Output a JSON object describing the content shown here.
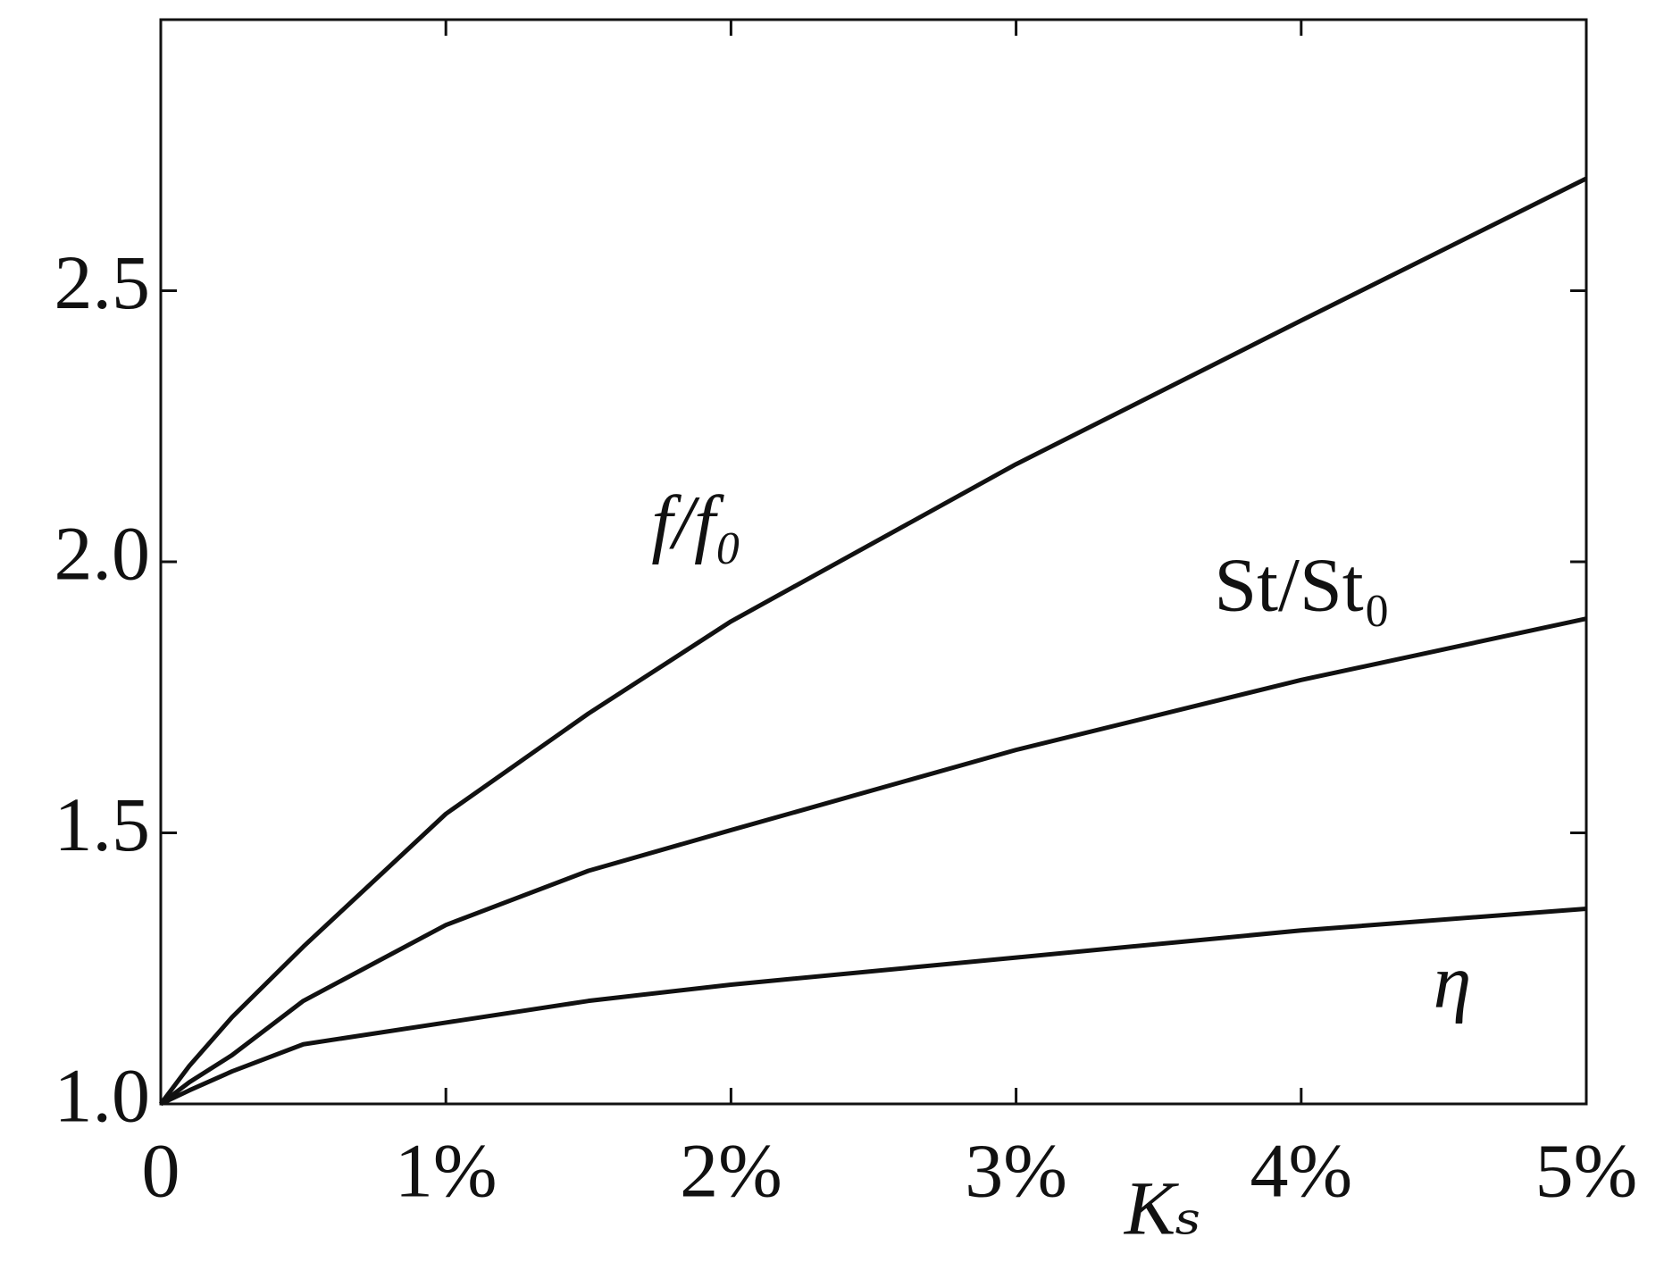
{
  "chart_data": {
    "type": "line",
    "x_label": "Kₛ",
    "x": [
      0,
      0.1,
      0.25,
      0.5,
      1,
      1.5,
      2,
      3,
      4,
      5
    ],
    "series": [
      {
        "name": "f/f₀",
        "color": "#111111",
        "values": [
          1,
          1.07,
          1.16,
          1.29,
          1.535,
          1.72,
          1.89,
          2.18,
          2.445,
          2.707
        ]
      },
      {
        "name": "St/St₀",
        "color": "#111111",
        "values": [
          1,
          1.04,
          1.09,
          1.19,
          1.33,
          1.43,
          1.505,
          1.653,
          1.782,
          1.895
        ]
      },
      {
        "name": "η",
        "color": "#111111",
        "values": [
          1,
          1.025,
          1.06,
          1.11,
          1.15,
          1.19,
          1.22,
          1.27,
          1.32,
          1.36
        ]
      }
    ],
    "xlim": [
      0,
      5
    ],
    "xticks": [
      0,
      {
        "value": 1,
        "label": "1%"
      },
      {
        "value": 2,
        "label": "2%"
      },
      {
        "value": 3,
        "label": "3%"
      },
      {
        "value": 4,
        "label": "4%"
      },
      {
        "value": 5,
        "label": "5%"
      }
    ],
    "ylim": [
      1,
      3
    ],
    "yticks": [
      {
        "value": 1,
        "label": "1.0"
      },
      {
        "value": 1.5,
        "label": "1.5"
      },
      {
        "value": 2,
        "label": "2.0"
      },
      {
        "value": 2.5,
        "label": "2.5"
      }
    ],
    "grid": false
  }
}
